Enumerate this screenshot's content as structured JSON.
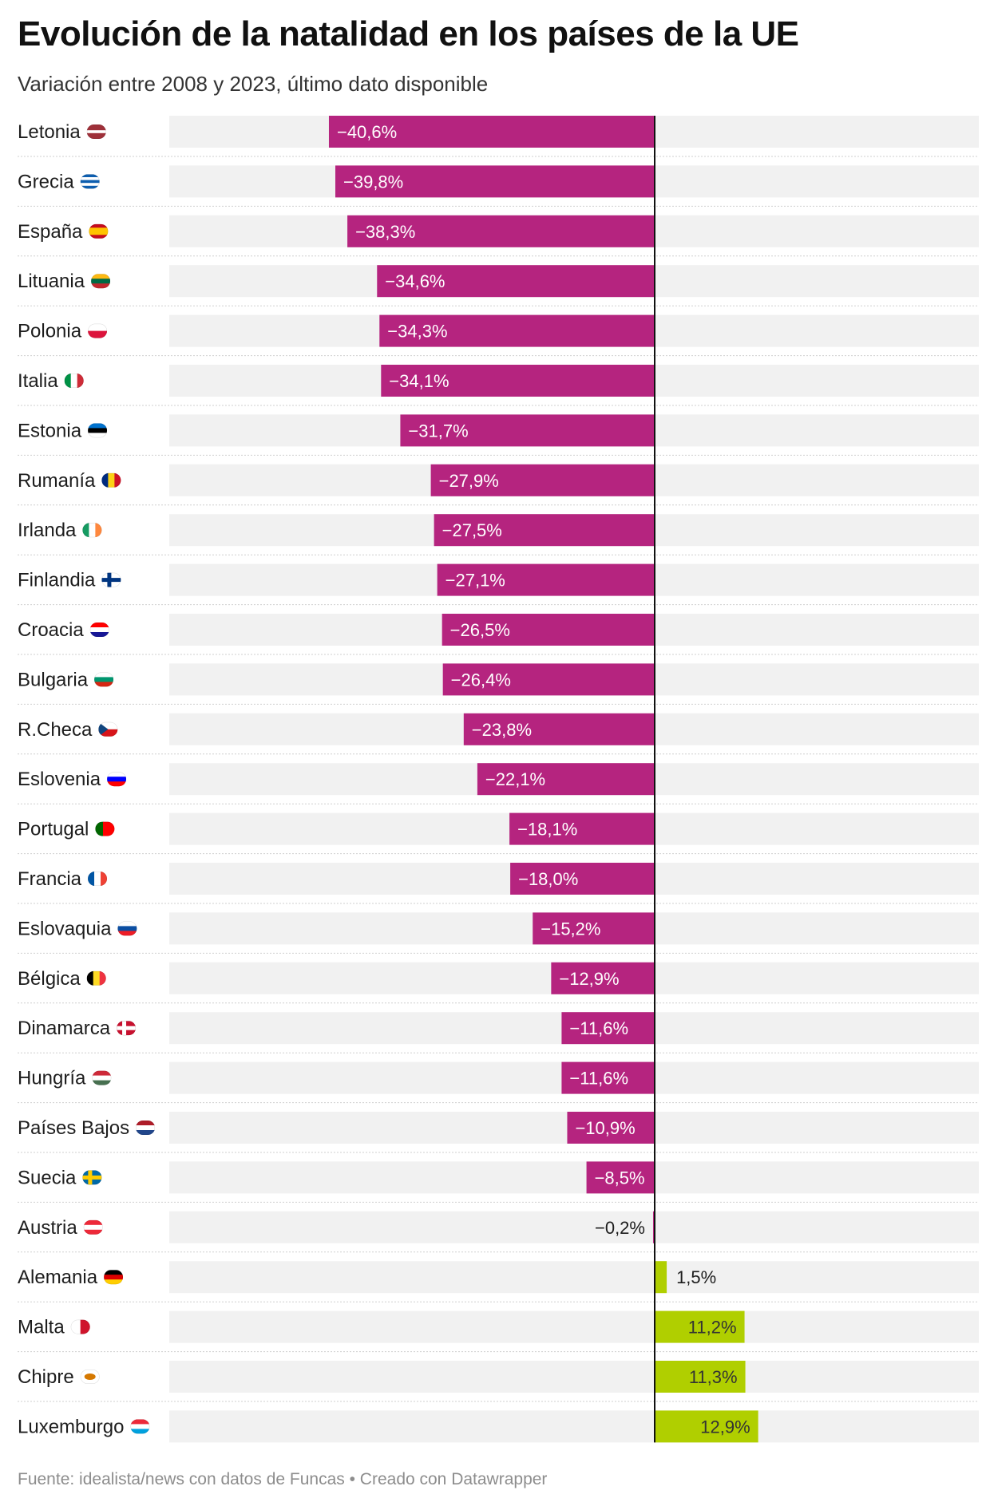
{
  "title": "Evolución de la natalidad en los países de la UE",
  "subtitle": "Variación entre 2008 y 2023, último dato disponible",
  "footer": {
    "source": "Fuente: idealista/news con datos de Funcas",
    "separator": "•",
    "credit": "Creado con Datawrapper"
  },
  "colors": {
    "negative": "#b5247f",
    "positive": "#b0cf00",
    "track": "#f1f1f1",
    "axis": "#111111",
    "divider": "#cfcfcf"
  },
  "chart_data": {
    "type": "bar",
    "orientation": "horizontal",
    "unit": "%",
    "xlim": [
      -41.5,
      41.5
    ],
    "categories": [
      "Letonia",
      "Grecia",
      "España",
      "Lituania",
      "Polonia",
      "Italia",
      "Estonia",
      "Rumanía",
      "Irlanda",
      "Finlandia",
      "Croacia",
      "Bulgaria",
      "R.Checa",
      "Eslovenia",
      "Portugal",
      "Francia",
      "Eslovaquia",
      "Bélgica",
      "Dinamarca",
      "Hungría",
      "Países Bajos",
      "Suecia",
      "Austria",
      "Alemania",
      "Malta",
      "Chipre",
      "Luxemburgo"
    ],
    "values": [
      -40.6,
      -39.8,
      -38.3,
      -34.6,
      -34.3,
      -34.1,
      -31.7,
      -27.9,
      -27.5,
      -27.1,
      -26.5,
      -26.4,
      -23.8,
      -22.1,
      -18.1,
      -18.0,
      -15.2,
      -12.9,
      -11.6,
      -11.6,
      -10.9,
      -8.5,
      -0.2,
      1.5,
      11.2,
      11.3,
      12.9
    ],
    "value_labels": [
      "−40,6%",
      "−39,8%",
      "−38,3%",
      "−34,6%",
      "−34,3%",
      "−34,1%",
      "−31,7%",
      "−27,9%",
      "−27,5%",
      "−27,1%",
      "−26,5%",
      "−26,4%",
      "−23,8%",
      "−22,1%",
      "−18,1%",
      "−18,0%",
      "−15,2%",
      "−12,9%",
      "−11,6%",
      "−11,6%",
      "−10,9%",
      "−8,5%",
      "−0,2%",
      "1,5%",
      "11,2%",
      "11,3%",
      "12,9%"
    ],
    "flags": [
      "lv-flag-icon",
      "gr-flag-icon",
      "es-flag-icon",
      "lt-flag-icon",
      "pl-flag-icon",
      "it-flag-icon",
      "ee-flag-icon",
      "ro-flag-icon",
      "ie-flag-icon",
      "fi-flag-icon",
      "hr-flag-icon",
      "bg-flag-icon",
      "cz-flag-icon",
      "si-flag-icon",
      "pt-flag-icon",
      "fr-flag-icon",
      "sk-flag-icon",
      "be-flag-icon",
      "dk-flag-icon",
      "hu-flag-icon",
      "nl-flag-icon",
      "se-flag-icon",
      "at-flag-icon",
      "de-flag-icon",
      "mt-flag-icon",
      "cy-flag-icon",
      "lu-flag-icon"
    ],
    "title": "Evolución de la natalidad en los países de la UE",
    "xlabel": "",
    "ylabel": ""
  }
}
